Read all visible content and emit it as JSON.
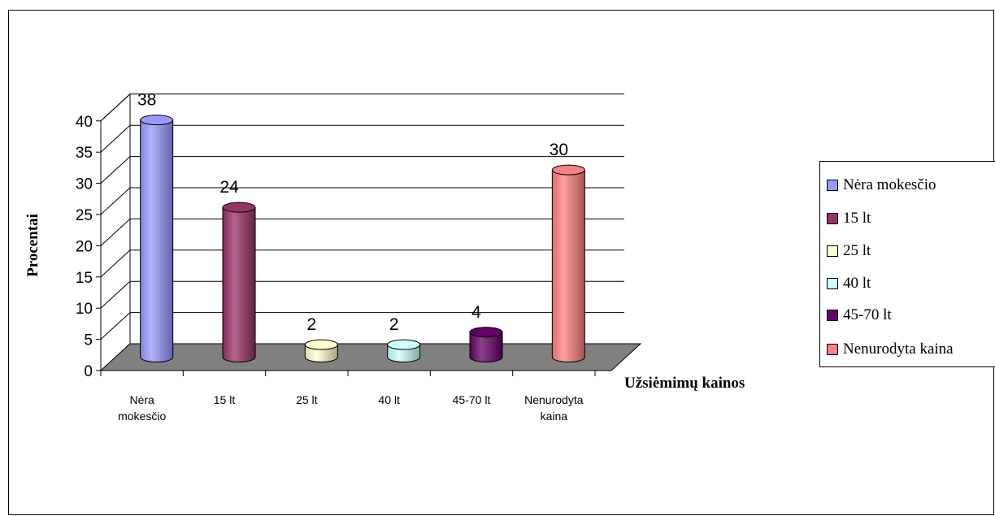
{
  "chart_data": {
    "type": "bar",
    "title": "",
    "xlabel": "Užsiėmimų kainos",
    "ylabel": "Procentai",
    "ylim": [
      0,
      40
    ],
    "yticks": [
      "0",
      "5",
      "10",
      "15",
      "20",
      "25",
      "30",
      "35",
      "40"
    ],
    "categories": [
      "Nėra mokesčio",
      "15 lt",
      "25 lt",
      "40 lt",
      "45-70 lt",
      "Nenurodyta kaina"
    ],
    "category_tick_labels": [
      [
        "Nėra",
        "mokesčio"
      ],
      [
        "15 lt"
      ],
      [
        "25 lt"
      ],
      [
        "40 lt"
      ],
      [
        "45-70 lt"
      ],
      [
        "Nenurodyta",
        "kaina"
      ]
    ],
    "values": [
      38,
      24,
      2,
      2,
      4,
      30
    ],
    "data_labels": [
      "38",
      "24",
      "2",
      "2",
      "4",
      "30"
    ],
    "colors": [
      "#9999ff",
      "#993366",
      "#ffffcc",
      "#ccffff",
      "#660066",
      "#ff8080"
    ],
    "legend": {
      "position": "right",
      "entries": [
        "Nėra mokesčio",
        "15 lt",
        "25 lt",
        "40 lt",
        "45-70 lt",
        "Nenurodyta kaina"
      ]
    },
    "grid": true,
    "shape": "3d-cylinder"
  }
}
